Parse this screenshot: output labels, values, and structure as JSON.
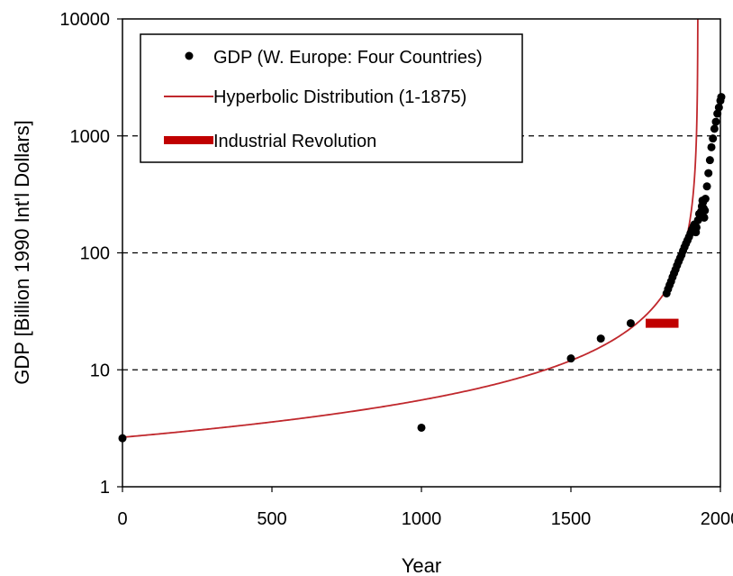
{
  "chart_data": {
    "type": "scatter",
    "xlabel": "Year",
    "ylabel": "GDP [Billion 1990 Int'l Dollars]",
    "xlim": [
      0,
      2000
    ],
    "ylim": [
      1,
      10000
    ],
    "y_scale": "log",
    "x_ticks": [
      0,
      500,
      1000,
      1500,
      2000
    ],
    "y_ticks": [
      1,
      10,
      100,
      1000,
      10000
    ],
    "x_tick_labels": [
      "0",
      "500",
      "1000",
      "1500",
      "2000"
    ],
    "y_tick_labels": [
      "1",
      "10",
      "100",
      "1000",
      "10000"
    ],
    "grid": "dashed horizontal lines at 10, 100, 1000",
    "legend_position": "top-left",
    "series": [
      {
        "name": "GDP (W. Europe: Four Countries)",
        "kind": "points",
        "color": "#000000",
        "x": [
          0,
          1000,
          1500,
          1600,
          1700,
          1820,
          1825,
          1830,
          1835,
          1840,
          1845,
          1850,
          1855,
          1860,
          1865,
          1870,
          1875,
          1880,
          1885,
          1890,
          1895,
          1900,
          1905,
          1910,
          1913,
          1915,
          1918,
          1920,
          1925,
          1929,
          1932,
          1935,
          1938,
          1940,
          1942,
          1944,
          1946,
          1948,
          1950,
          1955,
          1960,
          1965,
          1970,
          1975,
          1980,
          1985,
          1990,
          1995,
          2000,
          2003
        ],
        "y": [
          2.6,
          3.2,
          12.5,
          18.5,
          25,
          45,
          49,
          53,
          57,
          62,
          67,
          72,
          78,
          84,
          90,
          96,
          104,
          112,
          120,
          128,
          137,
          147,
          158,
          168,
          175,
          160,
          150,
          165,
          190,
          215,
          200,
          225,
          250,
          280,
          270,
          240,
          200,
          230,
          290,
          370,
          480,
          620,
          800,
          950,
          1150,
          1320,
          1550,
          1750,
          2000,
          2150
        ]
      },
      {
        "name": "Hyperbolic Distribution (1-1875)",
        "kind": "line",
        "color": "#c0282d"
      },
      {
        "name": "Industrial Revolution",
        "kind": "bar",
        "color": "#c00000",
        "x_range": [
          1750,
          1860
        ],
        "y": 25
      }
    ]
  }
}
